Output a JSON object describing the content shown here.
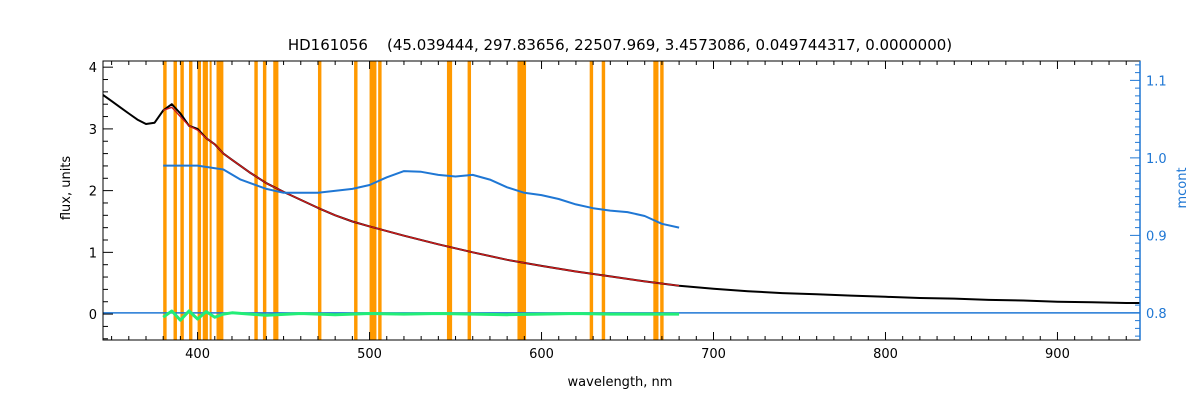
{
  "chart_data": {
    "type": "line",
    "title": "HD161056    (45.039444, 297.83656, 22507.969, 3.4573086, 0.049744317, 0.0000000)",
    "xlabel": "wavelength, nm",
    "ylabel": "flux, units",
    "y2label": "mcont",
    "xlim": [
      345,
      948
    ],
    "ylim": [
      -0.42,
      4.1
    ],
    "y2lim": [
      0.765,
      1.125
    ],
    "xticks": [
      400,
      500,
      600,
      700,
      800,
      900
    ],
    "yticks": [
      0,
      1,
      2,
      3,
      4
    ],
    "y2ticks": [
      0.8,
      0.9,
      1.0,
      1.1
    ],
    "y2ticklabels": [
      "0.8",
      "0.9",
      "1.0",
      "1.1"
    ],
    "grid": false,
    "colors": {
      "observed": "#000000",
      "model": "#cc1a1a",
      "residual": "#22ee77",
      "continuum": "#1f77d4",
      "masked": "#ff9900"
    },
    "masked_regions": [
      [
        380,
        382
      ],
      [
        386,
        388
      ],
      [
        390,
        392
      ],
      [
        395,
        397
      ],
      [
        400,
        402
      ],
      [
        403,
        406
      ],
      [
        407,
        408
      ],
      [
        411,
        415
      ],
      [
        433,
        435
      ],
      [
        438,
        440
      ],
      [
        444,
        447
      ],
      [
        470,
        472
      ],
      [
        491,
        493
      ],
      [
        500,
        504
      ],
      [
        505,
        507
      ],
      [
        545,
        548
      ],
      [
        557,
        559
      ],
      [
        586,
        591
      ],
      [
        628,
        630
      ],
      [
        635,
        637
      ],
      [
        665,
        668
      ],
      [
        669,
        671
      ]
    ],
    "series": [
      {
        "role": "observed",
        "x": [
          345,
          350,
          355,
          360,
          365,
          370,
          375,
          380,
          385,
          390,
          395,
          400,
          405,
          410,
          415,
          420,
          430,
          440,
          450,
          460,
          470,
          480,
          490,
          500,
          520,
          540,
          560,
          580,
          600,
          620,
          640,
          660,
          680,
          700,
          720,
          740,
          760,
          780,
          800,
          820,
          840,
          860,
          880,
          900,
          920,
          940,
          948
        ],
        "y": [
          3.55,
          3.45,
          3.35,
          3.25,
          3.15,
          3.08,
          3.1,
          3.3,
          3.4,
          3.25,
          3.05,
          3.0,
          2.85,
          2.75,
          2.6,
          2.5,
          2.3,
          2.12,
          1.98,
          1.85,
          1.72,
          1.6,
          1.5,
          1.42,
          1.27,
          1.13,
          1.0,
          0.88,
          0.78,
          0.69,
          0.61,
          0.53,
          0.46,
          0.41,
          0.37,
          0.34,
          0.32,
          0.3,
          0.28,
          0.26,
          0.25,
          0.23,
          0.22,
          0.2,
          0.19,
          0.18,
          0.18
        ]
      },
      {
        "role": "model",
        "x": [
          380,
          385,
          390,
          395,
          400,
          405,
          410,
          415,
          420,
          430,
          440,
          450,
          460,
          470,
          480,
          490,
          500,
          520,
          540,
          560,
          580,
          600,
          620,
          640,
          660,
          680
        ],
        "y": [
          3.3,
          3.35,
          3.2,
          3.05,
          2.98,
          2.85,
          2.75,
          2.6,
          2.5,
          2.3,
          2.12,
          1.98,
          1.85,
          1.72,
          1.6,
          1.5,
          1.42,
          1.27,
          1.13,
          1.0,
          0.88,
          0.78,
          0.69,
          0.61,
          0.53,
          0.46
        ]
      },
      {
        "role": "residual",
        "x": [
          380,
          385,
          390,
          395,
          400,
          405,
          410,
          415,
          420,
          440,
          460,
          480,
          500,
          520,
          540,
          560,
          580,
          600,
          620,
          640,
          660,
          680
        ],
        "y": [
          -0.05,
          0.05,
          -0.1,
          0.05,
          -0.08,
          0.04,
          -0.05,
          0.0,
          0.02,
          -0.02,
          0.01,
          -0.01,
          0.01,
          0.0,
          0.01,
          0.0,
          -0.01,
          0.0,
          0.01,
          0.0,
          0.0,
          0.0
        ]
      },
      {
        "role": "continuum",
        "axis": "y2",
        "x": [
          380,
          400,
          415,
          425,
          440,
          450,
          470,
          490,
          500,
          510,
          520,
          530,
          540,
          550,
          560,
          570,
          580,
          590,
          600,
          610,
          620,
          630,
          640,
          650,
          660,
          670,
          680
        ],
        "y": [
          0.99,
          0.99,
          0.985,
          0.972,
          0.96,
          0.955,
          0.955,
          0.96,
          0.965,
          0.975,
          0.983,
          0.982,
          0.978,
          0.976,
          0.978,
          0.972,
          0.962,
          0.955,
          0.952,
          0.947,
          0.94,
          0.935,
          0.932,
          0.93,
          0.925,
          0.915,
          0.91
        ]
      },
      {
        "role": "baseline",
        "axis": "y2",
        "x": [
          345,
          948
        ],
        "y": [
          0.8,
          0.8
        ]
      }
    ]
  }
}
